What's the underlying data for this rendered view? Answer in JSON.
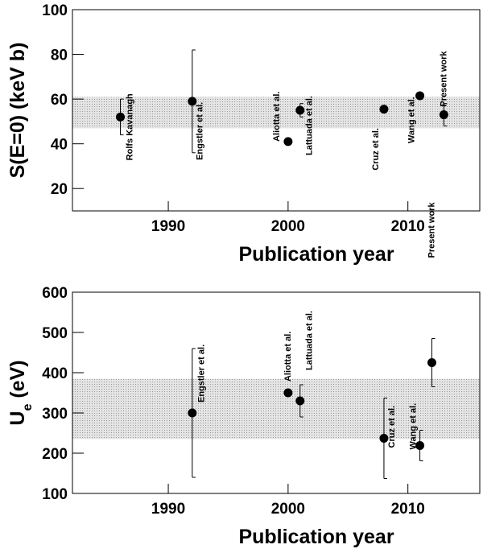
{
  "chart_data": [
    {
      "type": "scatter",
      "x_label": "Publication year",
      "y_label": "S(E=0) (keV b)",
      "xlim": [
        1982,
        2016
      ],
      "xticks": [
        1990,
        2000,
        2010
      ],
      "ylim": [
        10,
        100
      ],
      "yticks": [
        20,
        40,
        60,
        80,
        100
      ],
      "band": [
        47,
        61
      ],
      "color": "#000000",
      "x": [
        1986,
        1992,
        2000,
        2001,
        2008,
        2011,
        2013
      ],
      "values": [
        52,
        59,
        41,
        55,
        55.5,
        61.5,
        53
      ],
      "errors": [
        8,
        23,
        null,
        3,
        null,
        null,
        5
      ],
      "point_labels": [
        "Rolfs Kavanagh",
        "Engstler et al.",
        "Aliotta et al.",
        "Lattuada et al.",
        "Cruz et al.",
        "Wang et al.",
        "Present work"
      ]
    },
    {
      "type": "scatter",
      "x_label": "Publication year",
      "y_label_parts": [
        "U",
        "e",
        " (eV)"
      ],
      "xlim": [
        1982,
        2016
      ],
      "xticks": [
        1990,
        2000,
        2010
      ],
      "ylim": [
        100,
        600
      ],
      "yticks": [
        100,
        200,
        300,
        400,
        500,
        600
      ],
      "band": [
        235,
        385
      ],
      "color": "#000000",
      "x": [
        1992,
        2000,
        2001,
        2008,
        2011,
        2012
      ],
      "values": [
        300,
        350,
        330,
        237,
        219,
        425
      ],
      "errors": [
        160,
        null,
        40,
        100,
        38,
        60
      ],
      "point_labels": [
        "Engstler et al.",
        "Aliotta et al.",
        "Lattuada et al.",
        "Cruz et al.",
        "Wang et al.",
        "Present work"
      ]
    }
  ]
}
